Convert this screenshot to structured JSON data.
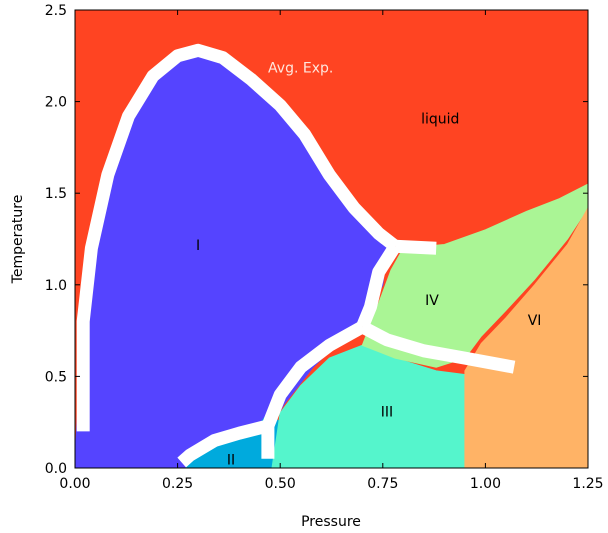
{
  "chart_data": {
    "type": "area",
    "xlabel": "Pressure",
    "ylabel": "Temperature",
    "xlim": [
      0,
      1.25
    ],
    "ylim": [
      0,
      2.5
    ],
    "xticks": [
      "0.00",
      "0.25",
      "0.50",
      "0.75",
      "1.00",
      "1.25"
    ],
    "yticks": [
      "0.0",
      "0.5",
      "1.0",
      "1.5",
      "2.0",
      "2.5"
    ],
    "grid": false,
    "phases": [
      {
        "label": "liquid",
        "color": "#ff4422",
        "label_at": [
          0.89,
          1.88
        ],
        "polygon": [
          [
            0,
            0
          ],
          [
            0,
            2.5
          ],
          [
            1.25,
            2.5
          ],
          [
            1.25,
            0
          ]
        ]
      },
      {
        "label": "I",
        "color": "#5544ff",
        "label_at": [
          0.3,
          1.19
        ],
        "polygon": [
          [
            0,
            0.05
          ],
          [
            0.02,
            0.85
          ],
          [
            0.05,
            1.25
          ],
          [
            0.1,
            1.7
          ],
          [
            0.15,
            1.98
          ],
          [
            0.2,
            2.17
          ],
          [
            0.25,
            2.27
          ],
          [
            0.3,
            2.3
          ],
          [
            0.34,
            2.27
          ],
          [
            0.4,
            2.17
          ],
          [
            0.47,
            2.05
          ],
          [
            0.53,
            1.92
          ],
          [
            0.58,
            1.75
          ],
          [
            0.63,
            1.55
          ],
          [
            0.68,
            1.4
          ],
          [
            0.73,
            1.3
          ],
          [
            0.76,
            1.22
          ],
          [
            0.75,
            1.0
          ],
          [
            0.71,
            0.82
          ],
          [
            0.65,
            0.7
          ],
          [
            0.58,
            0.55
          ],
          [
            0.51,
            0.35
          ],
          [
            0.47,
            0.2
          ],
          [
            0.4,
            0.12
          ],
          [
            0.3,
            0.02
          ],
          [
            0.27,
            0.0
          ],
          [
            0,
            0
          ]
        ]
      },
      {
        "label": "II",
        "color": "#00aadd",
        "label_at": [
          0.38,
          0.02
        ],
        "polygon": [
          [
            0.27,
            0
          ],
          [
            0.3,
            0.08
          ],
          [
            0.35,
            0.13
          ],
          [
            0.4,
            0.17
          ],
          [
            0.45,
            0.24
          ],
          [
            0.47,
            0.3
          ],
          [
            0.5,
            0.25
          ],
          [
            0.52,
            0
          ],
          [
            0.27,
            0
          ]
        ]
      },
      {
        "label": "III",
        "color": "#55f5cc",
        "label_at": [
          0.76,
          0.28
        ],
        "polygon": [
          [
            0.48,
            0
          ],
          [
            0.5,
            0.3
          ],
          [
            0.55,
            0.45
          ],
          [
            0.62,
            0.6
          ],
          [
            0.7,
            0.67
          ],
          [
            0.78,
            0.6
          ],
          [
            0.88,
            0.53
          ],
          [
            0.95,
            0.51
          ],
          [
            0.95,
            0
          ],
          [
            0.48,
            0
          ]
        ]
      },
      {
        "label": "IV",
        "color": "#aaf595",
        "label_at": [
          0.87,
          0.89
        ],
        "polygon": [
          [
            0.7,
            0.67
          ],
          [
            0.74,
            0.9
          ],
          [
            0.77,
            1.08
          ],
          [
            0.8,
            1.2
          ],
          [
            0.9,
            1.22
          ],
          [
            1.0,
            1.3
          ],
          [
            1.1,
            1.4
          ],
          [
            1.18,
            1.47
          ],
          [
            1.25,
            1.55
          ],
          [
            1.25,
            1.42
          ],
          [
            1.2,
            1.25
          ],
          [
            1.12,
            1.03
          ],
          [
            1.05,
            0.86
          ],
          [
            0.99,
            0.72
          ],
          [
            0.95,
            0.6
          ],
          [
            0.88,
            0.55
          ],
          [
            0.78,
            0.6
          ],
          [
            0.7,
            0.67
          ]
        ]
      },
      {
        "label": "VI",
        "color": "#ffb366",
        "label_at": [
          1.12,
          0.78
        ],
        "polygon": [
          [
            0.95,
            0
          ],
          [
            0.95,
            0.53
          ],
          [
            0.99,
            0.68
          ],
          [
            1.05,
            0.82
          ],
          [
            1.12,
            1.0
          ],
          [
            1.2,
            1.22
          ],
          [
            1.25,
            1.42
          ],
          [
            1.25,
            0
          ],
          [
            0.95,
            0
          ]
        ]
      }
    ],
    "boundaries": [
      {
        "points": [
          [
            0.02,
            0.2
          ],
          [
            0.02,
            0.8
          ],
          [
            0.04,
            1.2
          ],
          [
            0.08,
            1.6
          ],
          [
            0.13,
            1.92
          ],
          [
            0.19,
            2.14
          ],
          [
            0.25,
            2.25
          ],
          [
            0.3,
            2.28
          ],
          [
            0.36,
            2.24
          ],
          [
            0.43,
            2.12
          ],
          [
            0.5,
            1.98
          ],
          [
            0.56,
            1.82
          ],
          [
            0.62,
            1.6
          ],
          [
            0.68,
            1.42
          ],
          [
            0.74,
            1.28
          ],
          [
            0.78,
            1.21
          ]
        ]
      },
      {
        "points": [
          [
            0.78,
            1.21
          ],
          [
            0.88,
            1.2
          ]
        ]
      },
      {
        "points": [
          [
            0.78,
            1.21
          ],
          [
            0.74,
            1.07
          ],
          [
            0.72,
            0.88
          ],
          [
            0.7,
            0.77
          ]
        ]
      },
      {
        "points": [
          [
            0.7,
            0.77
          ],
          [
            0.76,
            0.7
          ],
          [
            0.85,
            0.64
          ],
          [
            0.95,
            0.6
          ],
          [
            1.07,
            0.55
          ]
        ]
      },
      {
        "points": [
          [
            0.7,
            0.77
          ],
          [
            0.62,
            0.67
          ],
          [
            0.55,
            0.55
          ],
          [
            0.5,
            0.4
          ],
          [
            0.47,
            0.23
          ],
          [
            0.47,
            0.05
          ]
        ]
      },
      {
        "points": [
          [
            0.47,
            0.23
          ],
          [
            0.4,
            0.19
          ],
          [
            0.34,
            0.15
          ],
          [
            0.28,
            0.07
          ],
          [
            0.26,
            0.03
          ]
        ]
      }
    ],
    "annotations": [
      {
        "text": "Avg. Exp.",
        "at": [
          0.55,
          2.16
        ],
        "color": "#ffe6dc"
      }
    ]
  }
}
